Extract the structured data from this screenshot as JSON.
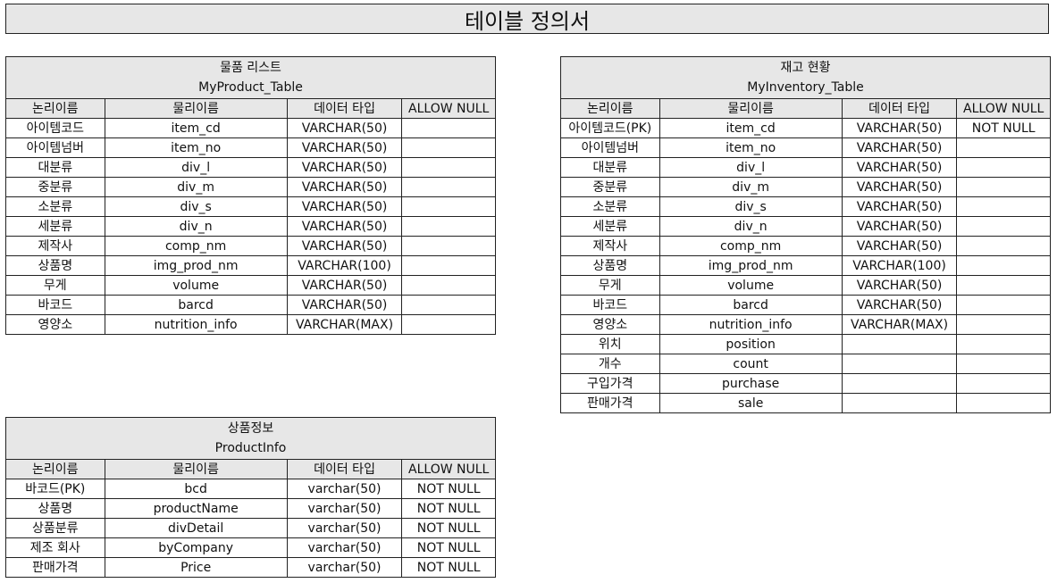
{
  "page_title": "테이블 정의서",
  "columns": [
    "논리이름",
    "물리이름",
    "데이터 타입",
    "ALLOW NULL"
  ],
  "tables": {
    "product": {
      "name_kr": "물품 리스트",
      "name_en": "MyProduct_Table",
      "rows": [
        [
          "아이템코드",
          "item_cd",
          "VARCHAR(50)",
          ""
        ],
        [
          "아이템넘버",
          "item_no",
          "VARCHAR(50)",
          ""
        ],
        [
          "대분류",
          "div_l",
          "VARCHAR(50)",
          ""
        ],
        [
          "중분류",
          "div_m",
          "VARCHAR(50)",
          ""
        ],
        [
          "소분류",
          "div_s",
          "VARCHAR(50)",
          ""
        ],
        [
          "세분류",
          "div_n",
          "VARCHAR(50)",
          ""
        ],
        [
          "제작사",
          "comp_nm",
          "VARCHAR(50)",
          ""
        ],
        [
          "상품명",
          "img_prod_nm",
          "VARCHAR(100)",
          ""
        ],
        [
          "무게",
          "volume",
          "VARCHAR(50)",
          ""
        ],
        [
          "바코드",
          "barcd",
          "VARCHAR(50)",
          ""
        ],
        [
          "영양소",
          "nutrition_info",
          "VARCHAR(MAX)",
          ""
        ]
      ]
    },
    "inventory": {
      "name_kr": "재고 현황",
      "name_en": "MyInventory_Table",
      "rows": [
        [
          "아이템코드(PK)",
          "item_cd",
          "VARCHAR(50)",
          "NOT NULL"
        ],
        [
          "아이템넘버",
          "item_no",
          "VARCHAR(50)",
          ""
        ],
        [
          "대분류",
          "div_l",
          "VARCHAR(50)",
          ""
        ],
        [
          "중분류",
          "div_m",
          "VARCHAR(50)",
          ""
        ],
        [
          "소분류",
          "div_s",
          "VARCHAR(50)",
          ""
        ],
        [
          "세분류",
          "div_n",
          "VARCHAR(50)",
          ""
        ],
        [
          "제작사",
          "comp_nm",
          "VARCHAR(50)",
          ""
        ],
        [
          "상품명",
          "img_prod_nm",
          "VARCHAR(100)",
          ""
        ],
        [
          "무게",
          "volume",
          "VARCHAR(50)",
          ""
        ],
        [
          "바코드",
          "barcd",
          "VARCHAR(50)",
          ""
        ],
        [
          "영양소",
          "nutrition_info",
          "VARCHAR(MAX)",
          ""
        ],
        [
          "위치",
          "position",
          "",
          ""
        ],
        [
          "개수",
          "count",
          "",
          ""
        ],
        [
          "구입가격",
          "purchase",
          "",
          ""
        ],
        [
          "판매가격",
          "sale",
          "",
          ""
        ]
      ]
    },
    "productinfo": {
      "name_kr": "상품정보",
      "name_en": "ProductInfo",
      "rows": [
        [
          "바코드(PK)",
          "bcd",
          "varchar(50)",
          "NOT NULL"
        ],
        [
          "상품명",
          "productName",
          "varchar(50)",
          "NOT NULL"
        ],
        [
          "상품분류",
          "divDetail",
          "varchar(50)",
          "NOT NULL"
        ],
        [
          "제조 회사",
          "byCompany",
          "varchar(50)",
          "NOT NULL"
        ],
        [
          "판매가격",
          "Price",
          "varchar(50)",
          "NOT NULL"
        ]
      ]
    }
  }
}
